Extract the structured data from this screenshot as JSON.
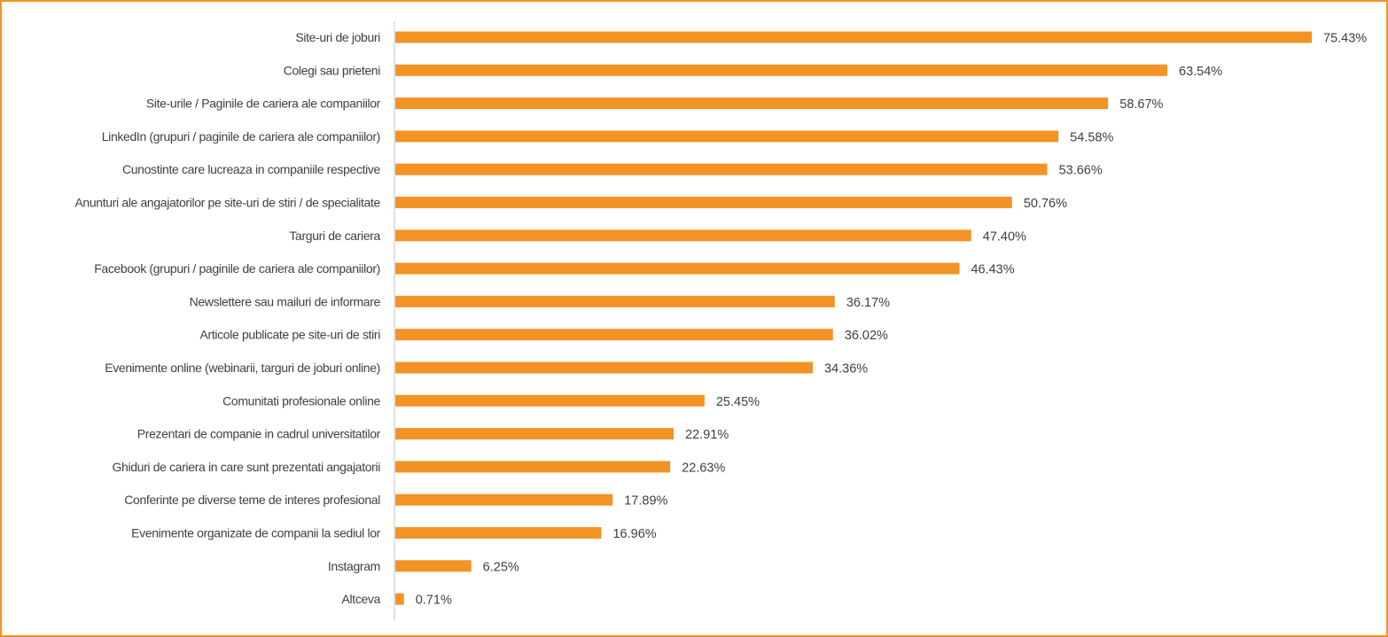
{
  "chart_data": {
    "type": "bar",
    "orientation": "horizontal",
    "title": "",
    "xlabel": "",
    "ylabel": "",
    "xlim": [
      0,
      75.43
    ],
    "grid": false,
    "bar_color": "#F39325",
    "categories": [
      "Site-uri de joburi",
      "Colegi sau prieteni",
      "Site-urile / Paginile de cariera ale companiilor",
      "LinkedIn (grupuri / paginile de cariera ale companiilor)",
      "Cunostinte care lucreaza in companiile respective",
      "Anunturi ale angajatorilor pe site-uri de stiri / de specialitate",
      "Targuri de cariera",
      "Facebook (grupuri / paginile de cariera ale companiilor)",
      "Newslettere sau mailuri de informare",
      "Articole publicate pe site-uri de stiri",
      "Evenimente online (webinarii, targuri de joburi online)",
      "Comunitati profesionale online",
      "Prezentari de companie in cadrul universitatilor",
      "Ghiduri de cariera in care sunt prezentati angajatorii",
      "Conferinte pe diverse teme de interes profesional",
      "Evenimente organizate de companii la sediul lor",
      "Instagram",
      "Altceva"
    ],
    "values": [
      75.43,
      63.54,
      58.67,
      54.58,
      53.66,
      50.76,
      47.4,
      46.43,
      36.17,
      36.02,
      34.36,
      25.45,
      22.91,
      22.63,
      17.89,
      16.96,
      6.25,
      0.71
    ],
    "data_labels": [
      "75.43%",
      "63.54%",
      "58.67%",
      "54.58%",
      "53.66%",
      "50.76%",
      "47.40%",
      "46.43%",
      "36.17%",
      "36.02%",
      "34.36%",
      "25.45%",
      "22.91%",
      "22.63%",
      "17.89%",
      "16.96%",
      "6.25%",
      "0.71%"
    ]
  }
}
